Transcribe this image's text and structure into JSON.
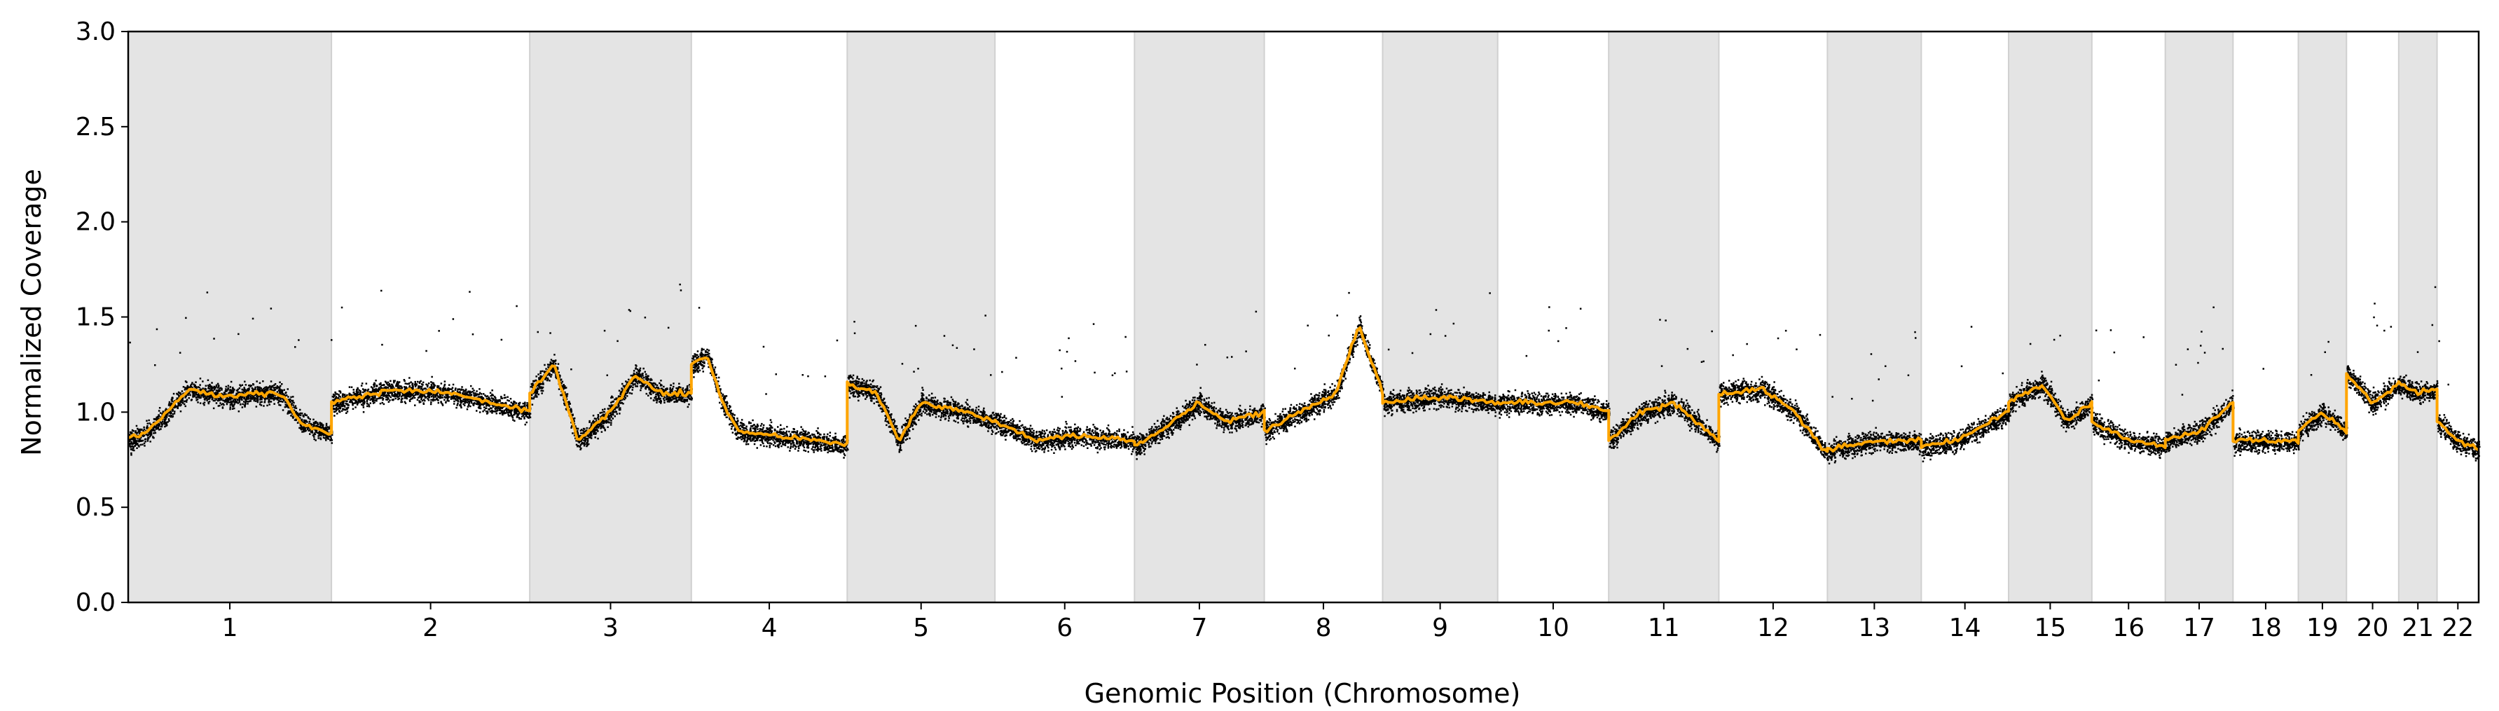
{
  "chart_data": {
    "type": "scatter",
    "title": "",
    "xlabel": "Genomic Position (Chromosome)",
    "ylabel": "Normalized Coverage",
    "ylim": [
      0.0,
      3.0
    ],
    "yticks": [
      "0.0",
      "0.5",
      "1.0",
      "1.5",
      "2.0",
      "2.5",
      "3.0"
    ],
    "grid": false,
    "legend": "none",
    "shading": "alternate chromosomes shaded grey",
    "colors": {
      "points": "#000000",
      "segment_line": "#FFA500",
      "shade": "#E4E4E4"
    },
    "chromosomes": [
      {
        "label": "1",
        "length": 249,
        "shaded": true,
        "profile": [
          [
            0,
            0.85
          ],
          [
            0.1,
            0.9
          ],
          [
            0.3,
            1.12
          ],
          [
            0.5,
            1.08
          ],
          [
            0.6,
            1.1
          ],
          [
            0.75,
            1.1
          ],
          [
            0.85,
            0.95
          ],
          [
            1,
            0.88
          ]
        ]
      },
      {
        "label": "2",
        "length": 243,
        "shaded": false,
        "profile": [
          [
            0,
            1.05
          ],
          [
            0.3,
            1.12
          ],
          [
            0.6,
            1.1
          ],
          [
            0.8,
            1.05
          ],
          [
            1,
            1.0
          ]
        ]
      },
      {
        "label": "3",
        "length": 198,
        "shaded": true,
        "profile": [
          [
            0,
            1.1
          ],
          [
            0.15,
            1.25
          ],
          [
            0.3,
            0.85
          ],
          [
            0.5,
            1.0
          ],
          [
            0.65,
            1.2
          ],
          [
            0.8,
            1.1
          ],
          [
            1,
            1.1
          ]
        ]
      },
      {
        "label": "4",
        "length": 191,
        "shaded": false,
        "profile": [
          [
            0,
            1.25
          ],
          [
            0.1,
            1.3
          ],
          [
            0.2,
            1.05
          ],
          [
            0.3,
            0.9
          ],
          [
            0.6,
            0.87
          ],
          [
            1,
            0.83
          ]
        ]
      },
      {
        "label": "5",
        "length": 181,
        "shaded": true,
        "profile": [
          [
            0,
            1.15
          ],
          [
            0.2,
            1.1
          ],
          [
            0.35,
            0.85
          ],
          [
            0.5,
            1.05
          ],
          [
            0.8,
            1.0
          ],
          [
            1,
            0.95
          ]
        ]
      },
      {
        "label": "6",
        "length": 171,
        "shaded": false,
        "profile": [
          [
            0,
            0.95
          ],
          [
            0.3,
            0.85
          ],
          [
            0.6,
            0.88
          ],
          [
            1,
            0.85
          ]
        ]
      },
      {
        "label": "7",
        "length": 159,
        "shaded": true,
        "profile": [
          [
            0,
            0.82
          ],
          [
            0.3,
            0.95
          ],
          [
            0.5,
            1.05
          ],
          [
            0.7,
            0.95
          ],
          [
            1,
            1.0
          ]
        ]
      },
      {
        "label": "8",
        "length": 145,
        "shaded": false,
        "profile": [
          [
            0,
            0.9
          ],
          [
            0.3,
            1.0
          ],
          [
            0.6,
            1.1
          ],
          [
            0.8,
            1.45
          ],
          [
            1,
            1.1
          ]
        ]
      },
      {
        "label": "9",
        "length": 141,
        "shaded": true,
        "profile": [
          [
            0,
            1.05
          ],
          [
            0.5,
            1.08
          ],
          [
            1,
            1.05
          ]
        ]
      },
      {
        "label": "10",
        "length": 136,
        "shaded": false,
        "profile": [
          [
            0,
            1.05
          ],
          [
            0.4,
            1.05
          ],
          [
            0.7,
            1.05
          ],
          [
            1,
            1.0
          ]
        ]
      },
      {
        "label": "11",
        "length": 135,
        "shaded": true,
        "profile": [
          [
            0,
            0.85
          ],
          [
            0.3,
            1.0
          ],
          [
            0.6,
            1.05
          ],
          [
            1,
            0.85
          ]
        ]
      },
      {
        "label": "12",
        "length": 133,
        "shaded": false,
        "profile": [
          [
            0,
            1.1
          ],
          [
            0.4,
            1.12
          ],
          [
            0.7,
            1.0
          ],
          [
            1,
            0.78
          ]
        ]
      },
      {
        "label": "13",
        "length": 115,
        "shaded": true,
        "profile": [
          [
            0,
            0.8
          ],
          [
            0.5,
            0.85
          ],
          [
            1,
            0.85
          ]
        ]
      },
      {
        "label": "14",
        "length": 107,
        "shaded": false,
        "profile": [
          [
            0,
            0.82
          ],
          [
            0.4,
            0.85
          ],
          [
            0.6,
            0.9
          ],
          [
            1,
            1.0
          ]
        ]
      },
      {
        "label": "15",
        "length": 102,
        "shaded": true,
        "profile": [
          [
            0,
            1.05
          ],
          [
            0.4,
            1.15
          ],
          [
            0.7,
            0.95
          ],
          [
            1,
            1.05
          ]
        ]
      },
      {
        "label": "16",
        "length": 90,
        "shaded": false,
        "profile": [
          [
            0,
            0.95
          ],
          [
            0.5,
            0.85
          ],
          [
            1,
            0.82
          ]
        ]
      },
      {
        "label": "17",
        "length": 83,
        "shaded": true,
        "profile": [
          [
            0,
            0.85
          ],
          [
            0.5,
            0.9
          ],
          [
            1,
            1.05
          ]
        ]
      },
      {
        "label": "18",
        "length": 80,
        "shaded": false,
        "profile": [
          [
            0,
            0.85
          ],
          [
            0.5,
            0.85
          ],
          [
            1,
            0.85
          ]
        ]
      },
      {
        "label": "19",
        "length": 59,
        "shaded": true,
        "profile": [
          [
            0,
            0.9
          ],
          [
            0.5,
            1.0
          ],
          [
            1,
            0.9
          ]
        ]
      },
      {
        "label": "20",
        "length": 64,
        "shaded": false,
        "profile": [
          [
            0,
            1.2
          ],
          [
            0.5,
            1.05
          ],
          [
            1,
            1.15
          ]
        ]
      },
      {
        "label": "21",
        "length": 47,
        "shaded": true,
        "profile": [
          [
            0,
            1.15
          ],
          [
            0.5,
            1.1
          ],
          [
            1,
            1.12
          ]
        ]
      },
      {
        "label": "22",
        "length": 51,
        "shaded": false,
        "profile": [
          [
            0,
            0.95
          ],
          [
            0.5,
            0.85
          ],
          [
            1,
            0.8
          ]
        ]
      }
    ]
  }
}
